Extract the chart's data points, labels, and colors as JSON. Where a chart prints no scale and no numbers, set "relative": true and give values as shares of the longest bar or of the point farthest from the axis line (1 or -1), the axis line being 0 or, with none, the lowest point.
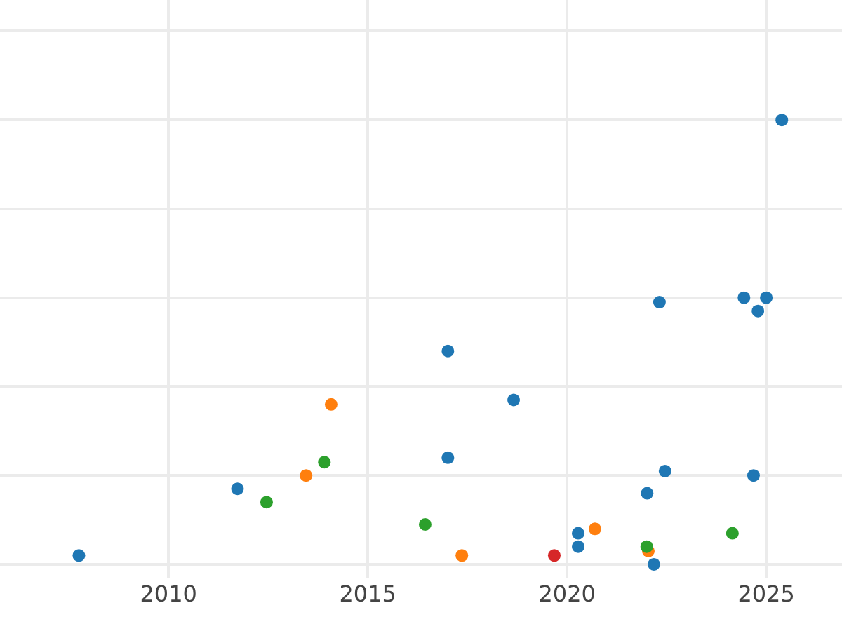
{
  "chart_data": {
    "type": "scatter",
    "relative": true,
    "xlim": [
      2005.77,
      2026.9
    ],
    "xticks": [
      2010,
      2015,
      2020,
      2025
    ],
    "grid": true,
    "legend": false,
    "marker": "circle",
    "series": [
      {
        "color": "#1f77b4",
        "x": [
          2007.75,
          2011.73,
          2017.01,
          2017.01,
          2018.66,
          2020.28,
          2020.28,
          2022.32,
          2022.01,
          2022.46,
          2022.18,
          2024.44,
          2024.79,
          2025.0,
          2024.68,
          2025.39
        ],
        "values": [
          0.02,
          0.17,
          0.48,
          0.24,
          0.37,
          0.07,
          0.04,
          0.59,
          0.16,
          0.21,
          0,
          0.6,
          0.57,
          0.6,
          0.2,
          1
        ]
      },
      {
        "color": "#ff7f0e",
        "x": [
          2014.08,
          2013.45,
          2017.36,
          2020.7,
          2022.04
        ],
        "values": [
          0.36,
          0.2,
          0.02,
          0.08,
          0.03
        ]
      },
      {
        "color": "#2ca02c",
        "x": [
          2012.46,
          2013.91,
          2016.44,
          2022.0,
          2024.15
        ],
        "values": [
          0.14,
          0.23,
          0.09,
          0.04,
          0.07
        ]
      },
      {
        "color": "#d62728",
        "x": [
          2019.68
        ],
        "values": [
          0.02
        ]
      }
    ]
  }
}
